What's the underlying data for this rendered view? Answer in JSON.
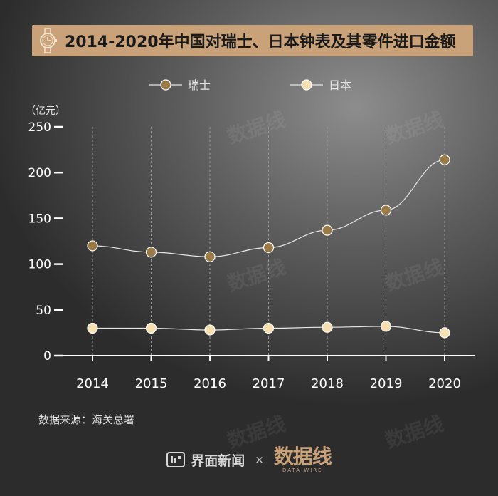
{
  "title": "2014-2020年中国对瑞士、日本钟表及其零件进口金额",
  "source": "数据来源：海关总署",
  "footer": {
    "brand": "界面新闻",
    "times": "×",
    "partner": "数据线",
    "partner_sub": "DATA WIRE"
  },
  "colors": {
    "swiss": "#9a7a46",
    "japan": "#f6dfb0",
    "title_bar": "#c9a27a"
  },
  "chart_data": {
    "type": "line",
    "ylabel": "（亿元）",
    "ylim": [
      0,
      250
    ],
    "yticks": [
      0,
      50,
      100,
      150,
      200,
      250
    ],
    "x": [
      "2014",
      "2015",
      "2016",
      "2017",
      "2018",
      "2019",
      "2020"
    ],
    "legend_position": "top-center",
    "series": [
      {
        "name": "瑞士",
        "values": [
          120,
          113,
          108,
          118,
          137,
          159,
          214
        ]
      },
      {
        "name": "日本",
        "values": [
          30,
          30,
          28,
          30,
          31,
          32,
          25
        ]
      }
    ]
  }
}
